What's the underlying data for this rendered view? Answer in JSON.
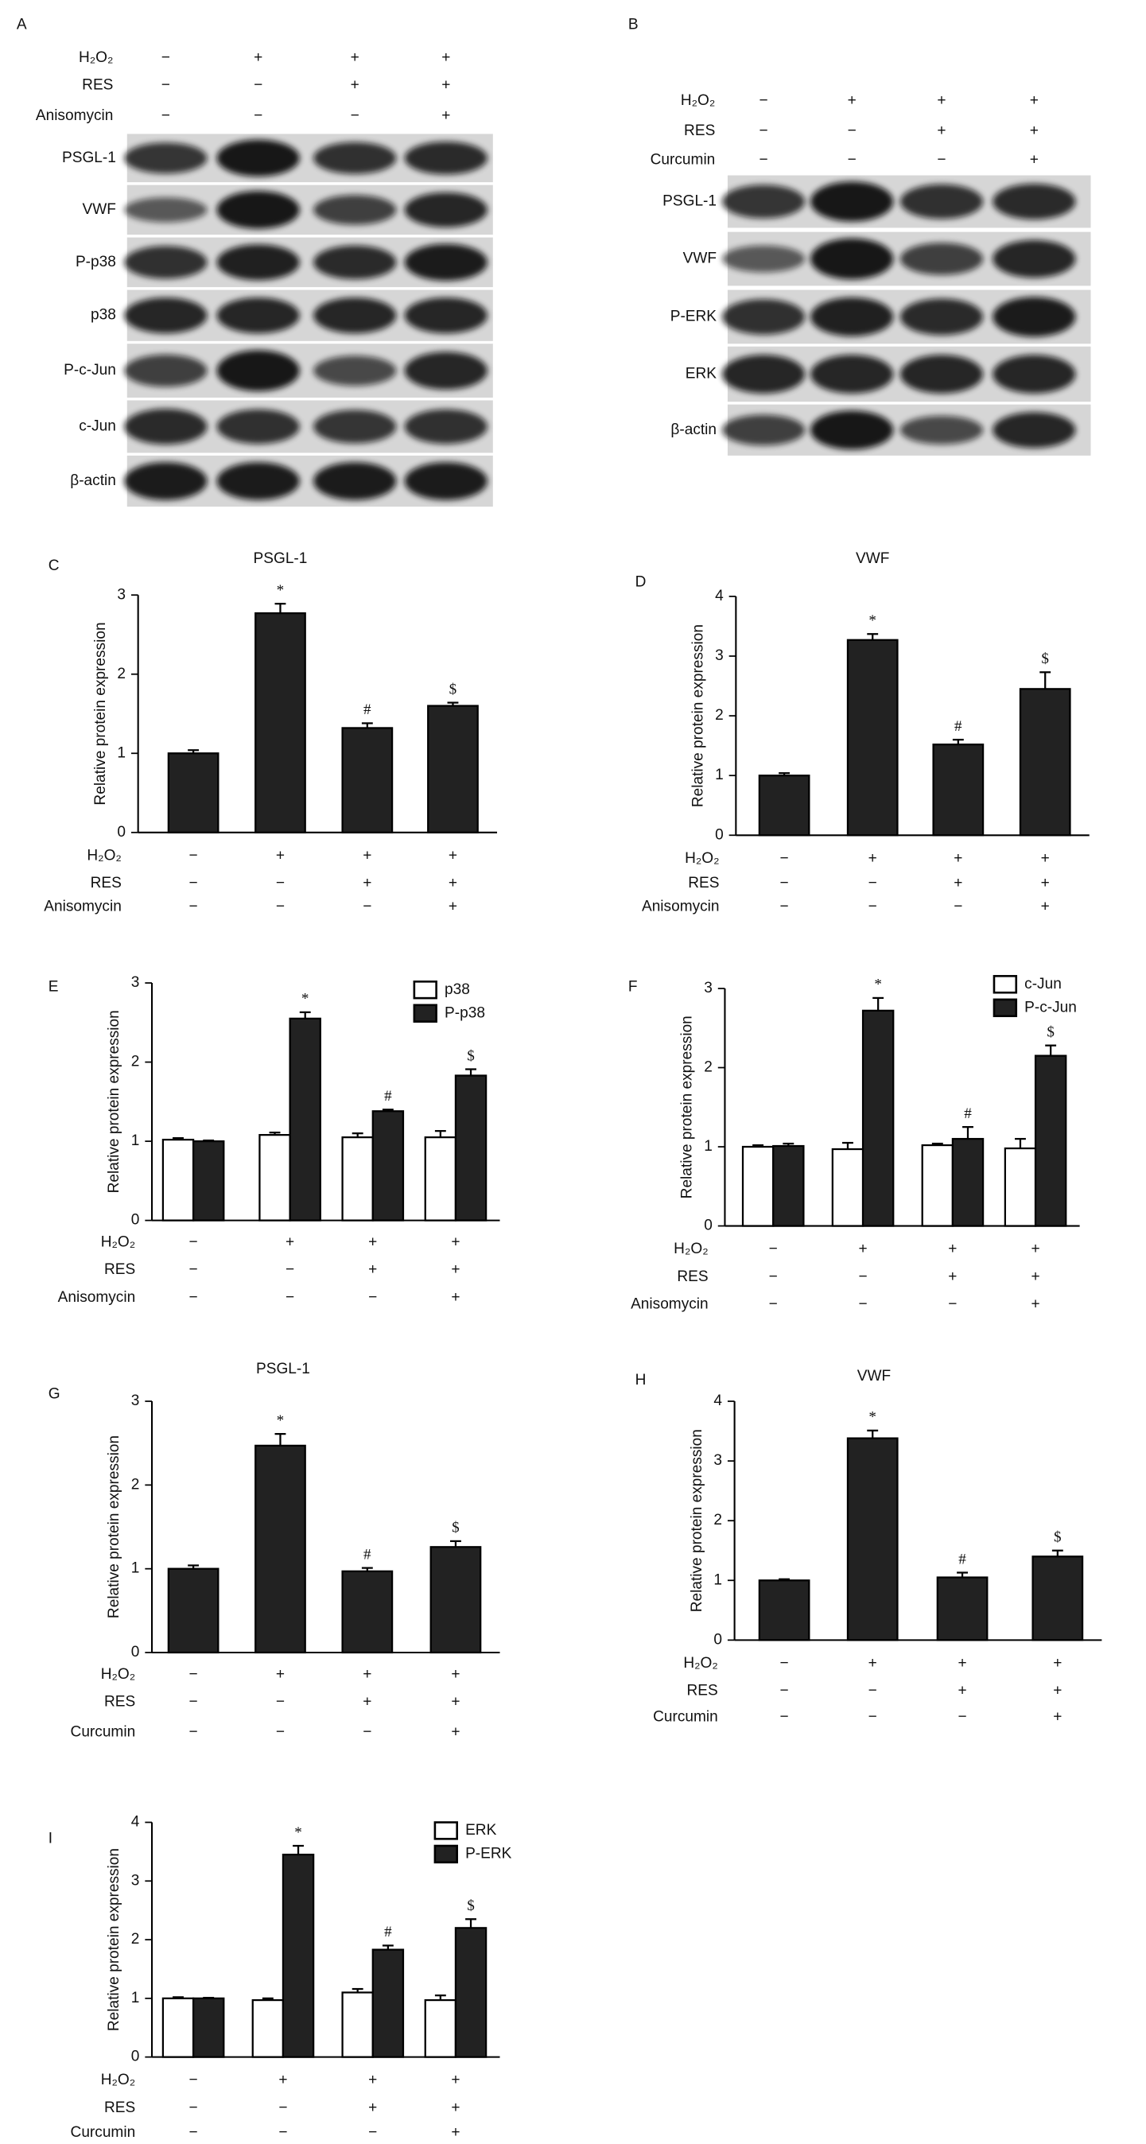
{
  "blots": [
    {
      "panel": "A",
      "treatments": [
        {
          "label": "H₂O₂",
          "signs": [
            "−",
            "+",
            "+",
            "+"
          ]
        },
        {
          "label": "RES",
          "signs": [
            "−",
            "−",
            "+",
            "+"
          ]
        },
        {
          "label": "Anisomycin",
          "signs": [
            "−",
            "−",
            "−",
            "+"
          ]
        }
      ],
      "bands": [
        "PSGL-1",
        "VWF",
        "P-p38",
        "p38",
        "P-c-Jun",
        "c-Jun",
        "β-actin"
      ]
    },
    {
      "panel": "B",
      "treatments": [
        {
          "label": "H₂O₂",
          "signs": [
            "−",
            "+",
            "+",
            "+"
          ]
        },
        {
          "label": "RES",
          "signs": [
            "−",
            "−",
            "+",
            "+"
          ]
        },
        {
          "label": "Curcumin",
          "signs": [
            "−",
            "−",
            "−",
            "+"
          ]
        }
      ],
      "bands": [
        "PSGL-1",
        "VWF",
        "P-ERK",
        "ERK",
        "β-actin"
      ]
    }
  ],
  "chart_data": [
    {
      "type": "bar",
      "panel": "C",
      "title": "PSGL-1",
      "y_label": "Relative protein expression",
      "ylim": [
        0,
        3
      ],
      "yticks": [
        0,
        1,
        2,
        3
      ],
      "treatments": [
        {
          "label": "H₂O₂",
          "signs": [
            "−",
            "+",
            "+",
            "+"
          ]
        },
        {
          "label": "RES",
          "signs": [
            "−",
            "−",
            "+",
            "+"
          ]
        },
        {
          "label": "Anisomycin",
          "signs": [
            "−",
            "−",
            "−",
            "+"
          ]
        }
      ],
      "series": [
        {
          "color": "#222222",
          "values": [
            1.0,
            2.77,
            1.32,
            1.6
          ],
          "errors": [
            0.04,
            0.12,
            0.06,
            0.04
          ],
          "annotations": [
            null,
            "*",
            "#",
            "$"
          ]
        }
      ]
    },
    {
      "type": "bar",
      "panel": "D",
      "title": "VWF",
      "y_label": "Relative protein expression",
      "ylim": [
        0,
        4
      ],
      "yticks": [
        0,
        1,
        2,
        3,
        4
      ],
      "treatments": [
        {
          "label": "H₂O₂",
          "signs": [
            "−",
            "+",
            "+",
            "+"
          ]
        },
        {
          "label": "RES",
          "signs": [
            "−",
            "−",
            "+",
            "+"
          ]
        },
        {
          "label": "Anisomycin",
          "signs": [
            "−",
            "−",
            "−",
            "+"
          ]
        }
      ],
      "series": [
        {
          "color": "#222222",
          "values": [
            1.0,
            3.27,
            1.52,
            2.45
          ],
          "errors": [
            0.04,
            0.1,
            0.08,
            0.28
          ],
          "annotations": [
            null,
            "*",
            "#",
            "$"
          ]
        }
      ]
    },
    {
      "type": "bar",
      "panel": "E",
      "y_label": "Relative protein expression",
      "ylim": [
        0,
        3
      ],
      "yticks": [
        0,
        1,
        2,
        3
      ],
      "treatments": [
        {
          "label": "H₂O₂",
          "signs": [
            "−",
            "+",
            "+",
            "+"
          ]
        },
        {
          "label": "RES",
          "signs": [
            "−",
            "−",
            "+",
            "+"
          ]
        },
        {
          "label": "Anisomycin",
          "signs": [
            "−",
            "−",
            "−",
            "+"
          ]
        }
      ],
      "series": [
        {
          "name": "p38",
          "color": "#ffffff",
          "values": [
            1.02,
            1.08,
            1.05,
            1.05
          ],
          "errors": [
            0.02,
            0.03,
            0.05,
            0.08
          ]
        },
        {
          "name": "P-p38",
          "color": "#222222",
          "values": [
            1.0,
            2.55,
            1.38,
            1.83
          ],
          "errors": [
            0.01,
            0.08,
            0.02,
            0.08
          ],
          "annotations": [
            null,
            "*",
            "#",
            "$"
          ]
        }
      ]
    },
    {
      "type": "bar",
      "panel": "F",
      "y_label": "Relative protein expression",
      "ylim": [
        0,
        3
      ],
      "yticks": [
        0,
        1,
        2,
        3
      ],
      "treatments": [
        {
          "label": "H₂O₂",
          "signs": [
            "−",
            "+",
            "+",
            "+"
          ]
        },
        {
          "label": "RES",
          "signs": [
            "−",
            "−",
            "+",
            "+"
          ]
        },
        {
          "label": "Anisomycin",
          "signs": [
            "−",
            "−",
            "−",
            "+"
          ]
        }
      ],
      "series": [
        {
          "name": "c-Jun",
          "color": "#ffffff",
          "values": [
            1.0,
            0.97,
            1.02,
            0.98
          ],
          "errors": [
            0.02,
            0.08,
            0.02,
            0.12
          ]
        },
        {
          "name": "P-c-Jun",
          "color": "#222222",
          "values": [
            1.01,
            2.72,
            1.1,
            2.15
          ],
          "errors": [
            0.03,
            0.16,
            0.15,
            0.13
          ],
          "annotations": [
            null,
            "*",
            "#",
            "$"
          ]
        }
      ]
    },
    {
      "type": "bar",
      "panel": "G",
      "title": "PSGL-1",
      "y_label": "Relative protein expression",
      "ylim": [
        0,
        3
      ],
      "yticks": [
        0,
        1,
        2,
        3
      ],
      "treatments": [
        {
          "label": "H₂O₂",
          "signs": [
            "−",
            "+",
            "+",
            "+"
          ]
        },
        {
          "label": "RES",
          "signs": [
            "−",
            "−",
            "+",
            "+"
          ]
        },
        {
          "label": "Curcumin",
          "signs": [
            "−",
            "−",
            "−",
            "+"
          ]
        }
      ],
      "series": [
        {
          "color": "#222222",
          "values": [
            1.0,
            2.47,
            0.97,
            1.26
          ],
          "errors": [
            0.04,
            0.14,
            0.04,
            0.07
          ],
          "annotations": [
            null,
            "*",
            "#",
            "$"
          ]
        }
      ]
    },
    {
      "type": "bar",
      "panel": "H",
      "title": "VWF",
      "y_label": "Relative protein expression",
      "ylim": [
        0,
        4
      ],
      "yticks": [
        0,
        1,
        2,
        3,
        4
      ],
      "treatments": [
        {
          "label": "H₂O₂",
          "signs": [
            "−",
            "+",
            "+",
            "+"
          ]
        },
        {
          "label": "RES",
          "signs": [
            "−",
            "−",
            "+",
            "+"
          ]
        },
        {
          "label": "Curcumin",
          "signs": [
            "−",
            "−",
            "−",
            "+"
          ]
        }
      ],
      "series": [
        {
          "color": "#222222",
          "values": [
            1.0,
            3.38,
            1.05,
            1.4
          ],
          "errors": [
            0.02,
            0.13,
            0.08,
            0.1
          ],
          "annotations": [
            null,
            "*",
            "#",
            "$"
          ]
        }
      ]
    },
    {
      "type": "bar",
      "panel": "I",
      "y_label": "Relative protein expression",
      "ylim": [
        0,
        4
      ],
      "yticks": [
        0,
        1,
        2,
        3,
        4
      ],
      "treatments": [
        {
          "label": "H₂O₂",
          "signs": [
            "−",
            "+",
            "+",
            "+"
          ]
        },
        {
          "label": "RES",
          "signs": [
            "−",
            "−",
            "+",
            "+"
          ]
        },
        {
          "label": "Curcumin",
          "signs": [
            "−",
            "−",
            "−",
            "+"
          ]
        }
      ],
      "series": [
        {
          "name": "ERK",
          "color": "#ffffff",
          "values": [
            1.0,
            0.97,
            1.1,
            0.97
          ],
          "errors": [
            0.02,
            0.03,
            0.06,
            0.08
          ]
        },
        {
          "name": "P-ERK",
          "color": "#222222",
          "values": [
            1.0,
            3.45,
            1.83,
            2.2
          ],
          "errors": [
            0.01,
            0.15,
            0.07,
            0.15
          ],
          "annotations": [
            null,
            "*",
            "#",
            "$"
          ]
        }
      ]
    }
  ]
}
